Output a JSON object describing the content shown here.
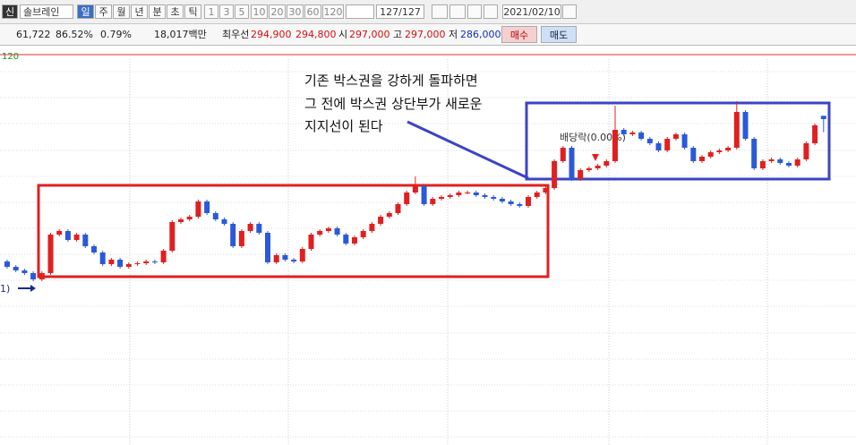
{
  "toolbar": {
    "code_badge": "신",
    "stock": "솔브레인",
    "periods": [
      "일",
      "주",
      "월",
      "년",
      "분",
      "초",
      "틱"
    ],
    "intervals": [
      "1",
      "3",
      "5",
      "10",
      "20",
      "30",
      "60",
      "120"
    ],
    "count": "127/127",
    "date": "2021/02/10"
  },
  "quote": {
    "volume": "61,722",
    "ratio": "86.52%",
    "change_rate": "0.79%",
    "amount": "18,017백만",
    "best_label": "최우선",
    "ask": "294,900",
    "bid": "294,800",
    "open_label": "시",
    "open": "297,000",
    "high_label": "고",
    "high": "297,000",
    "low_label": "저",
    "low": "286,000",
    "buy": "매수",
    "sell": "매도"
  },
  "chart_data": {
    "type": "candlestick",
    "ma_label": "120",
    "left_marker": "1)",
    "ex_dividend": "배당락(0.00%)",
    "annotations": [
      "기존 박스권을 강하게 돌파하면",
      "그 전에 박스권 상단부가 새로운",
      "지지선이 된다"
    ],
    "up_color": "#e02020",
    "down_color": "#2a5ad8",
    "ylim": [
      170600,
      335600
    ],
    "open": [
      199400,
      195800,
      193400,
      191600,
      187400,
      191600,
      217400,
      219800,
      213800,
      217400,
      209600,
      205400,
      197600,
      200600,
      195800,
      197600,
      198200,
      199400,
      198800,
      206600,
      225800,
      227600,
      229400,
      239600,
      231800,
      227600,
      224600,
      209600,
      219800,
      224600,
      218600,
      198800,
      203600,
      200600,
      199400,
      207800,
      217400,
      219800,
      221600,
      217400,
      211400,
      215600,
      219800,
      224600,
      229400,
      231800,
      237800,
      245600,
      249800,
      237800,
      241400,
      242600,
      243800,
      245600,
      245600,
      243800,
      242600,
      241400,
      239600,
      237800,
      236600,
      242600,
      245600,
      248600,
      266600,
      275600,
      254600,
      260600,
      261800,
      263600,
      266600,
      287600,
      284600,
      285800,
      281600,
      278600,
      273800,
      281600,
      284600,
      275600,
      266600,
      269600,
      272600,
      273800,
      275600,
      299600,
      281600,
      261800,
      266600,
      267800,
      265400,
      263600,
      267800,
      278600,
      297000
    ],
    "high": [
      200600,
      197000,
      194600,
      192800,
      192800,
      218600,
      221000,
      221000,
      218600,
      218600,
      210800,
      206600,
      201800,
      201800,
      198800,
      199400,
      200600,
      200600,
      207800,
      227000,
      228800,
      230600,
      240800,
      240800,
      233000,
      228800,
      225800,
      221000,
      225800,
      225800,
      219800,
      204800,
      204800,
      201800,
      209000,
      218600,
      221000,
      222800,
      222800,
      218600,
      216800,
      221000,
      225800,
      230600,
      233000,
      239000,
      246800,
      256400,
      251000,
      242600,
      243800,
      245000,
      246800,
      246800,
      246800,
      245000,
      243800,
      242600,
      240800,
      239000,
      243800,
      246800,
      249800,
      267800,
      276800,
      276800,
      261800,
      263000,
      264800,
      267800,
      303800,
      288800,
      287000,
      287000,
      282800,
      279800,
      282800,
      285800,
      285800,
      276800,
      270800,
      273800,
      275000,
      276800,
      306800,
      300800,
      282800,
      267800,
      269000,
      269000,
      266600,
      269000,
      279800,
      291800,
      297000
    ],
    "low": [
      194600,
      192200,
      190400,
      186200,
      186200,
      190400,
      216200,
      212600,
      212600,
      208400,
      204200,
      196400,
      196400,
      194600,
      194600,
      196400,
      197000,
      197600,
      197600,
      205400,
      224600,
      226400,
      228200,
      230600,
      226400,
      223400,
      208400,
      208400,
      218600,
      217400,
      197600,
      197600,
      199400,
      198200,
      198200,
      206600,
      216200,
      218600,
      216200,
      210200,
      210200,
      214400,
      218600,
      223400,
      228200,
      230600,
      236600,
      244400,
      236600,
      236600,
      240200,
      241400,
      242600,
      244400,
      242600,
      241400,
      240200,
      238400,
      236600,
      235400,
      235400,
      241400,
      244400,
      247400,
      265400,
      253400,
      253400,
      259400,
      260600,
      262400,
      265400,
      283400,
      283400,
      280400,
      277400,
      272600,
      272600,
      280400,
      274400,
      265400,
      265400,
      268400,
      271400,
      272600,
      274400,
      280400,
      260600,
      260600,
      265400,
      264200,
      262400,
      262400,
      266600,
      277400,
      286000
    ],
    "close": [
      195800,
      193400,
      191600,
      187400,
      191600,
      217400,
      219800,
      213800,
      217400,
      209600,
      205400,
      197600,
      200600,
      195800,
      197600,
      198200,
      199400,
      198800,
      206600,
      225800,
      227600,
      229400,
      239600,
      231800,
      227600,
      224600,
      209600,
      219800,
      224600,
      218600,
      198800,
      203600,
      200600,
      199400,
      207800,
      217400,
      219800,
      221600,
      217400,
      211400,
      215600,
      219800,
      224600,
      229400,
      231800,
      237800,
      245600,
      249800,
      237800,
      241400,
      242600,
      243800,
      245600,
      245600,
      243800,
      242600,
      241400,
      239600,
      237800,
      236600,
      242600,
      245600,
      248600,
      266600,
      275600,
      254600,
      260600,
      261800,
      263600,
      266600,
      287600,
      284600,
      285800,
      281600,
      278600,
      273800,
      281600,
      284600,
      275600,
      266600,
      269600,
      272600,
      273800,
      275600,
      299600,
      281600,
      261800,
      266600,
      267800,
      265400,
      263600,
      267800,
      278600,
      290600,
      294800
    ]
  }
}
